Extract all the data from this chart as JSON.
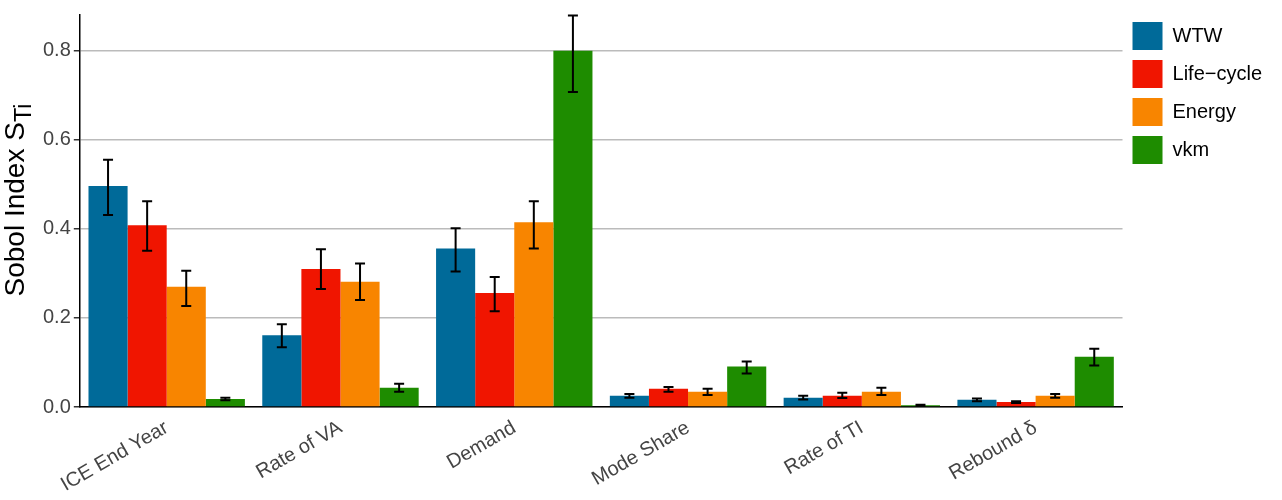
{
  "chart_data": {
    "type": "bar",
    "ylabel": "Sobol Index S$_{Ti}$",
    "categories": [
      "ICE End Year",
      "Rate of VA",
      "Demand",
      "Mode Share",
      "Rate of TI",
      "Rebound δ"
    ],
    "series": [
      {
        "name": "WTW",
        "color": "#006a99",
        "values": [
          0.496,
          0.161,
          0.356,
          0.025,
          0.021,
          0.016
        ],
        "errors": [
          [
            0.431,
            0.555
          ],
          [
            0.134,
            0.186
          ],
          [
            0.304,
            0.401
          ],
          [
            0.021,
            0.029
          ],
          [
            0.017,
            0.025
          ],
          [
            0.013,
            0.019
          ]
        ]
      },
      {
        "name": "Life−cycle",
        "color": "#f01500",
        "values": [
          0.408,
          0.31,
          0.256,
          0.041,
          0.025,
          0.011
        ],
        "errors": [
          [
            0.351,
            0.462
          ],
          [
            0.265,
            0.354
          ],
          [
            0.215,
            0.292
          ],
          [
            0.034,
            0.045
          ],
          [
            0.02,
            0.032
          ],
          [
            0.009,
            0.013
          ]
        ]
      },
      {
        "name": "Energy",
        "color": "#f88500",
        "values": [
          0.27,
          0.281,
          0.415,
          0.034,
          0.034,
          0.025
        ],
        "errors": [
          [
            0.227,
            0.306
          ],
          [
            0.24,
            0.322
          ],
          [
            0.356,
            0.462
          ],
          [
            0.027,
            0.041
          ],
          [
            0.027,
            0.043
          ],
          [
            0.021,
            0.029
          ]
        ]
      },
      {
        "name": "vkm",
        "color": "#1e8c00",
        "values": [
          0.018,
          0.043,
          0.8,
          0.091,
          0.004,
          0.113
        ],
        "errors": [
          [
            0.015,
            0.021
          ],
          [
            0.034,
            0.052
          ],
          [
            0.707,
            0.879
          ],
          [
            0.075,
            0.102
          ],
          [
            0.003,
            0.005
          ],
          [
            0.093,
            0.131
          ]
        ]
      }
    ],
    "ylim": [
      0,
      0.88
    ],
    "yticks": [
      {
        "value": 0,
        "label": "0.0"
      },
      {
        "value": 0.2,
        "label": "0.2"
      },
      {
        "value": 0.4,
        "label": "0.4"
      },
      {
        "value": 0.6,
        "label": "0.6"
      },
      {
        "value": 0.8,
        "label": "0.8"
      }
    ],
    "grid": "y",
    "legend": "top right"
  }
}
